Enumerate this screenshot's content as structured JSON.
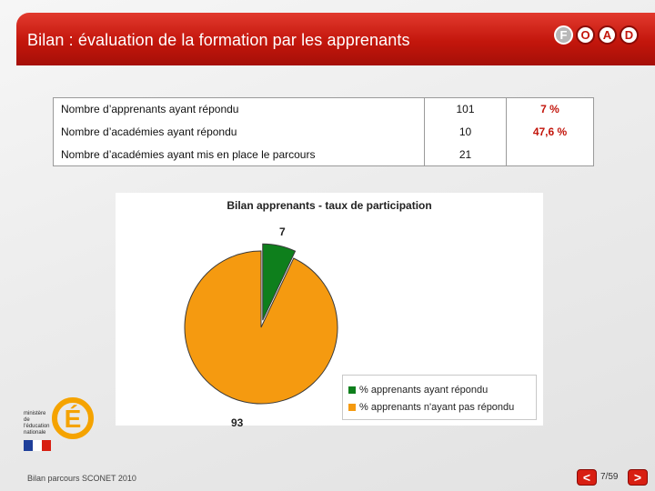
{
  "header": {
    "title": "Bilan : évaluation de la formation par les apprenants",
    "logo_letters": [
      "F",
      "O",
      "A",
      "D"
    ]
  },
  "stats": {
    "rows": [
      {
        "label": "Nombre d’apprenants ayant répondu",
        "value": "101",
        "percent": "7 %"
      },
      {
        "label": "Nombre d’académies ayant répondu",
        "value": "10",
        "percent": "47,6 %"
      },
      {
        "label": "Nombre d’académies ayant mis en place le parcours",
        "value": "21",
        "percent": ""
      }
    ]
  },
  "chart_data": {
    "type": "pie",
    "title": "Bilan apprenants - taux de participation",
    "categories": [
      "% apprenants ayant répondu",
      "% apprenants n'ayant pas répondu"
    ],
    "values": [
      7,
      93
    ],
    "colors": [
      "#0e7f1c",
      "#f59a10"
    ],
    "data_labels": [
      "7",
      "93"
    ],
    "legend_position": "bottom-right"
  },
  "ministry": {
    "text": "ministère de l'éducation nationale",
    "letter": "É"
  },
  "footer": {
    "text": "Bilan parcours SCONET 2010",
    "prev_label": "<",
    "next_label": ">",
    "page": "7/59"
  }
}
